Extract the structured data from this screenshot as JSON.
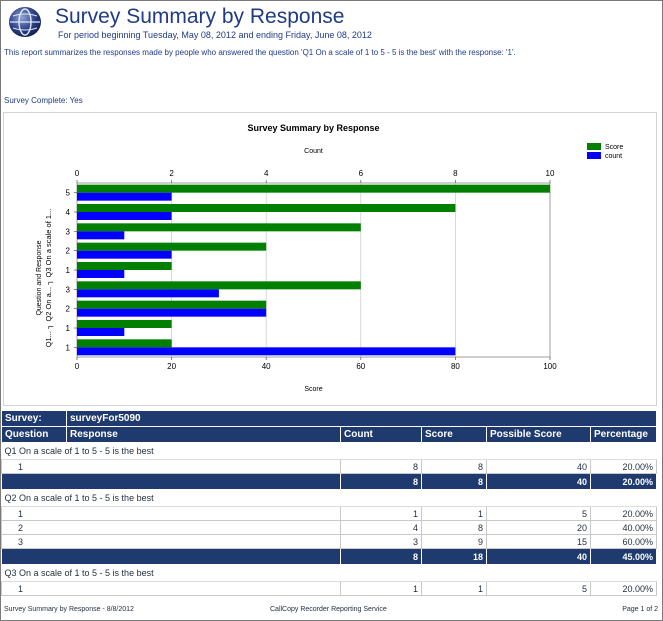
{
  "header": {
    "title": "Survey Summary by Response",
    "period": "For period beginning Tuesday, May 08, 2012 and ending Friday, June 08, 2012",
    "description": "This report summarizes the responses made by people who answered the question 'Q1 On a scale of 1 to 5 - 5 is the best' with the response: '1'.",
    "survey_complete": "Survey Complete: Yes"
  },
  "chart_data": {
    "type": "bar",
    "orientation": "horizontal",
    "title": "Survey Summary by Response",
    "top_axis_label": "Count",
    "top_axis_ticks": [
      "0",
      "2",
      "4",
      "6",
      "8",
      "10"
    ],
    "xlim_count": [
      0,
      10
    ],
    "bottom_axis_label": "Score",
    "bottom_axis_ticks": [
      "0",
      "20",
      "40",
      "60",
      "80",
      "100"
    ],
    "xlim_score": [
      0,
      100
    ],
    "ylabel": "Question and Response",
    "group_labels": [
      "Q3 On a scale of 1...",
      "Q2 On a...",
      "Q1..."
    ],
    "categories": [
      "5",
      "4",
      "3",
      "2",
      "1",
      "3",
      "2",
      "1",
      "1"
    ],
    "series": [
      {
        "name": "Score",
        "color": "#007f00",
        "axis": "score",
        "values": [
          100,
          80,
          60,
          40,
          20,
          60,
          40,
          20,
          20
        ]
      },
      {
        "name": "count",
        "color": "#0000ff",
        "axis": "count",
        "values": [
          2,
          2,
          1,
          2,
          1,
          3,
          4,
          1,
          8
        ]
      }
    ],
    "legend": "top-right",
    "grid": true
  },
  "table": {
    "survey_label": "Survey:",
    "survey_name": "surveyFor5090",
    "columns": [
      "Question",
      "Response",
      "Count",
      "Score",
      "Possible Score",
      "Percentage"
    ],
    "groups": [
      {
        "question": "Q1 On a scale of 1 to 5 - 5 is the best",
        "rows": [
          {
            "response": "1",
            "count": "8",
            "score": "8",
            "possible": "40",
            "percentage": "20.00%"
          }
        ],
        "total": {
          "count": "8",
          "score": "8",
          "possible": "40",
          "percentage": "20.00%"
        }
      },
      {
        "question": "Q2 On a scale of 1 to 5 - 5 is the best",
        "rows": [
          {
            "response": "1",
            "count": "1",
            "score": "1",
            "possible": "5",
            "percentage": "20.00%"
          },
          {
            "response": "2",
            "count": "4",
            "score": "8",
            "possible": "20",
            "percentage": "40.00%"
          },
          {
            "response": "3",
            "count": "3",
            "score": "9",
            "possible": "15",
            "percentage": "60.00%"
          }
        ],
        "total": {
          "count": "8",
          "score": "18",
          "possible": "40",
          "percentage": "45.00%"
        }
      },
      {
        "question": "Q3 On a scale of 1 to 5 - 5 is the best",
        "rows": [
          {
            "response": "1",
            "count": "1",
            "score": "1",
            "possible": "5",
            "percentage": "20.00%"
          }
        ]
      }
    ]
  },
  "footer": {
    "left": "Survey Summary by Response - 8/8/2012",
    "center": "CallCopy Recorder Reporting Service",
    "right": "Page 1 of 2"
  }
}
